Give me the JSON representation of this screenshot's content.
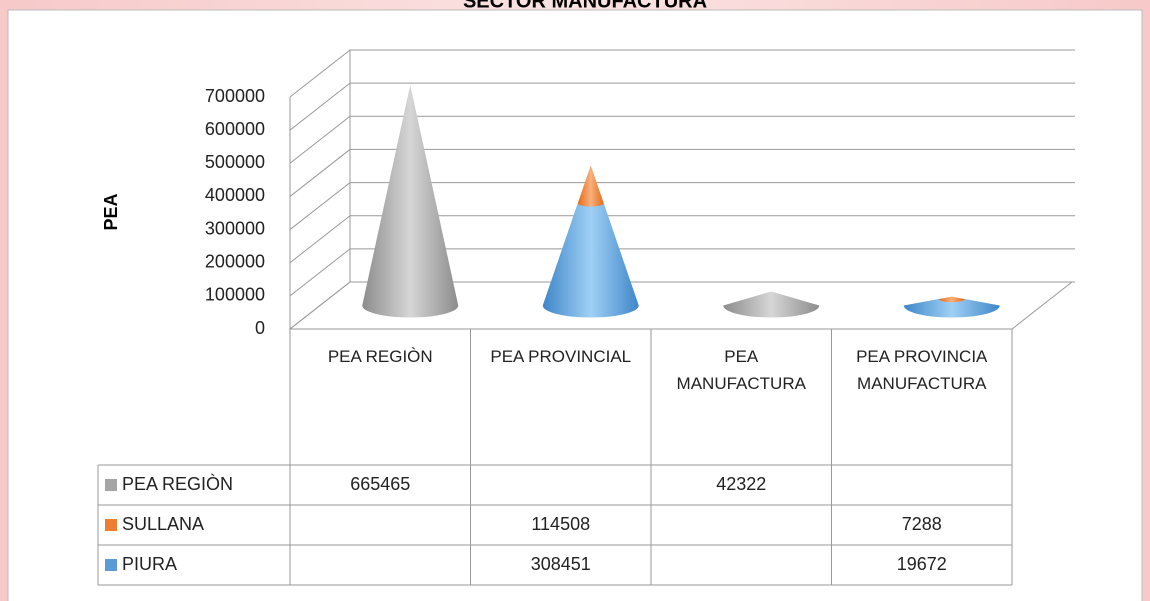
{
  "chart_data": {
    "type": "cone",
    "title": "SECTOR MANUFACTURA",
    "y_label": "PEA",
    "categories": [
      "PEA REGIÒN",
      "PEA PROVINCIAL",
      "PEA MANUFACTURA",
      "PEA PROVINCIA MANUFACTURA"
    ],
    "series": [
      {
        "name": "PEA REGIÒN",
        "color": "#a5a5a5",
        "values": [
          665465,
          null,
          42322,
          null
        ]
      },
      {
        "name": "SULLANA",
        "color": "#ed7d31",
        "values": [
          null,
          114508,
          null,
          7288
        ]
      },
      {
        "name": "PIURA",
        "color": "#5b9bd5",
        "values": [
          null,
          308451,
          null,
          19672
        ]
      }
    ],
    "stack_order": [
      "PIURA",
      "SULLANA"
    ],
    "ylim": [
      0,
      700000
    ],
    "yticks": [
      0,
      100000,
      200000,
      300000,
      400000,
      500000,
      600000,
      700000
    ],
    "grid": true
  }
}
